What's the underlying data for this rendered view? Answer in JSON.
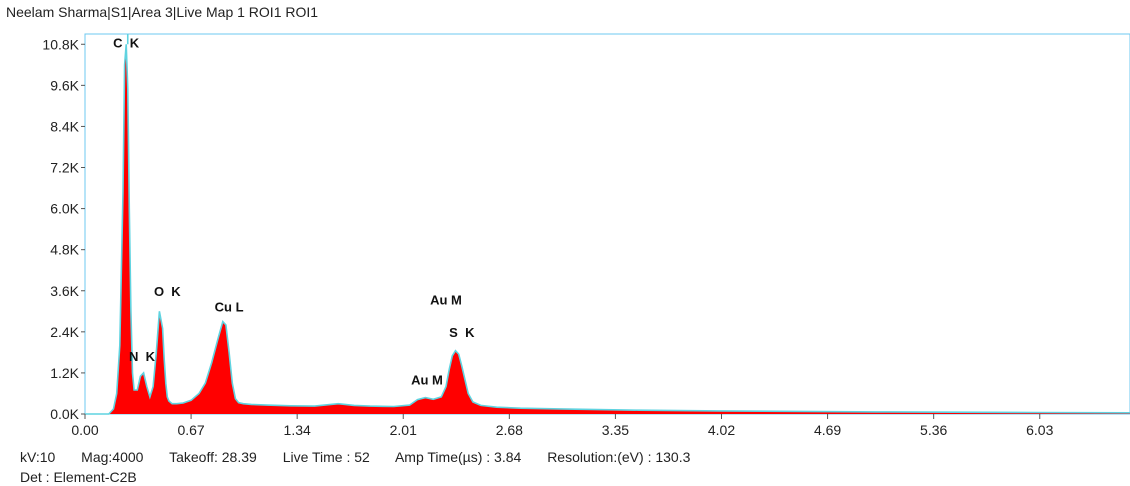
{
  "header": {
    "title": "Neelam Sharma|S1|Area 3|Live Map 1 ROI1 ROI1"
  },
  "footer": {
    "kv": "kV:10",
    "mag": "Mag:4000",
    "takeoff": "Takeoff: 28.39",
    "live_time": "Live Time : 52",
    "amp_time": "Amp Time(µs) : 3.84",
    "resolution": "Resolution:(eV) : 130.3",
    "detector": "Det : Element-C2B"
  },
  "colors": {
    "fill": "#ff0000",
    "outline": "#5fd3e0",
    "frame": "#6ec8f0"
  },
  "chart_data": {
    "type": "area",
    "xlim": [
      0,
      6.6
    ],
    "ylim": [
      0,
      11100
    ],
    "x_ticks": [
      "0.00",
      "0.67",
      "1.34",
      "2.01",
      "2.68",
      "3.35",
      "4.02",
      "4.69",
      "5.36",
      "6.03"
    ],
    "y_ticks": [
      "0.0K",
      "1.2K",
      "2.4K",
      "3.6K",
      "4.8K",
      "6.0K",
      "7.2K",
      "8.4K",
      "9.6K",
      "10.8K"
    ],
    "y_tick_values": [
      0,
      1200,
      2400,
      3600,
      4800,
      6000,
      7200,
      8400,
      9600,
      10800
    ],
    "x": [
      0,
      0.15,
      0.18,
      0.2,
      0.22,
      0.24,
      0.25,
      0.26,
      0.27,
      0.28,
      0.29,
      0.3,
      0.31,
      0.33,
      0.35,
      0.37,
      0.39,
      0.41,
      0.43,
      0.45,
      0.47,
      0.49,
      0.5,
      0.51,
      0.52,
      0.53,
      0.55,
      0.58,
      0.62,
      0.67,
      0.72,
      0.76,
      0.8,
      0.84,
      0.87,
      0.89,
      0.91,
      0.93,
      0.95,
      0.97,
      1.0,
      1.05,
      1.15,
      1.3,
      1.45,
      1.6,
      1.7,
      1.8,
      1.95,
      2.05,
      2.1,
      2.15,
      2.2,
      2.25,
      2.28,
      2.3,
      2.32,
      2.34,
      2.36,
      2.38,
      2.4,
      2.42,
      2.45,
      2.5,
      2.6,
      2.75,
      3.0,
      3.5,
      4.0,
      5.0,
      6.0,
      6.6
    ],
    "values": [
      0,
      0,
      150,
      600,
      2000,
      6500,
      10200,
      10800,
      9500,
      6000,
      3000,
      1200,
      700,
      700,
      1100,
      1200,
      800,
      500,
      800,
      1800,
      3000,
      2500,
      1600,
      900,
      500,
      380,
      300,
      300,
      320,
      400,
      600,
      900,
      1500,
      2200,
      2700,
      2600,
      1800,
      900,
      450,
      330,
      300,
      280,
      260,
      240,
      230,
      300,
      250,
      230,
      220,
      260,
      420,
      480,
      430,
      500,
      800,
      1300,
      1700,
      1850,
      1750,
      1400,
      1000,
      600,
      350,
      250,
      200,
      170,
      150,
      110,
      90,
      60,
      45,
      35
    ],
    "peak_labels": [
      {
        "text": "C  K",
        "x": 0.26,
        "y": 10700
      },
      {
        "text": "N  K",
        "x": 0.36,
        "y": 1550
      },
      {
        "text": "O  K",
        "x": 0.52,
        "y": 3450
      },
      {
        "text": "Cu L",
        "x": 0.91,
        "y": 3000
      },
      {
        "text": "Au M",
        "x": 2.28,
        "y": 3200
      },
      {
        "text": "S  K",
        "x": 2.38,
        "y": 2250
      },
      {
        "text": "Au M",
        "x": 2.16,
        "y": 860
      }
    ]
  }
}
